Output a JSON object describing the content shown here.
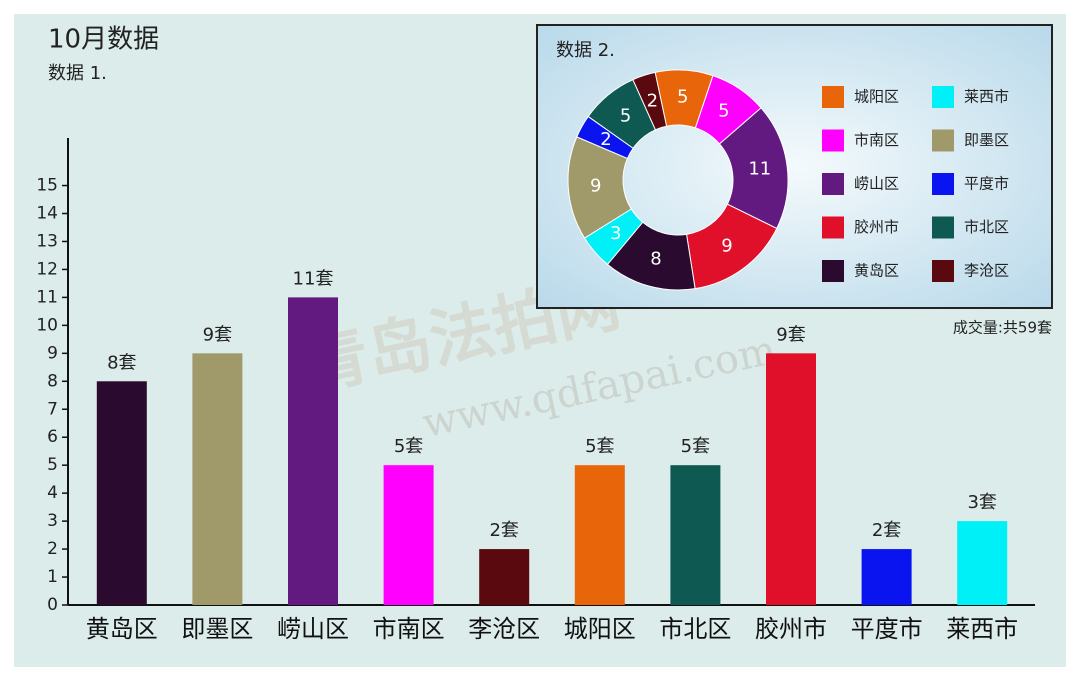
{
  "title": "10月数据",
  "watermark": "青岛法拍网",
  "watermark_url": "www.qdfapai.com",
  "chart_data": [
    {
      "type": "bar",
      "subtitle": "数据 1.",
      "categories": [
        "黄岛区",
        "即墨区",
        "崂山区",
        "市南区",
        "李沧区",
        "城阳区",
        "市北区",
        "胶州市",
        "平度市",
        "莱西市"
      ],
      "values": [
        8,
        9,
        11,
        5,
        2,
        5,
        5,
        9,
        2,
        3
      ],
      "value_labels": [
        "8套",
        "9套",
        "11套",
        "5套",
        "2套",
        "5套",
        "5套",
        "9套",
        "2套",
        "3套"
      ],
      "colors": [
        "#2a0a2e",
        "#a09a6a",
        "#621a80",
        "#ff00ff",
        "#5a0a0e",
        "#e8650a",
        "#0e5a52",
        "#e0102a",
        "#0a14f0",
        "#00f0f8"
      ],
      "ylim": [
        0,
        16.7
      ],
      "yticks": [
        0,
        1,
        2,
        3,
        4,
        5,
        6,
        7,
        8,
        9,
        10,
        11,
        12,
        13,
        14,
        15
      ]
    },
    {
      "type": "donut",
      "title": "数据 2.",
      "note": "成交量:共59套",
      "categories": [
        "城阳区",
        "市南区",
        "崂山区",
        "胶州市",
        "黄岛区",
        "莱西市",
        "即墨区",
        "平度市",
        "市北区",
        "李沧区"
      ],
      "values": [
        5,
        5,
        11,
        9,
        8,
        3,
        9,
        2,
        5,
        2
      ],
      "colors": [
        "#e8650a",
        "#ff00ff",
        "#621a80",
        "#e0102a",
        "#2a0a2e",
        "#00f0f8",
        "#a09a6a",
        "#0a14f0",
        "#0e5a52",
        "#5a0a0e"
      ]
    }
  ]
}
